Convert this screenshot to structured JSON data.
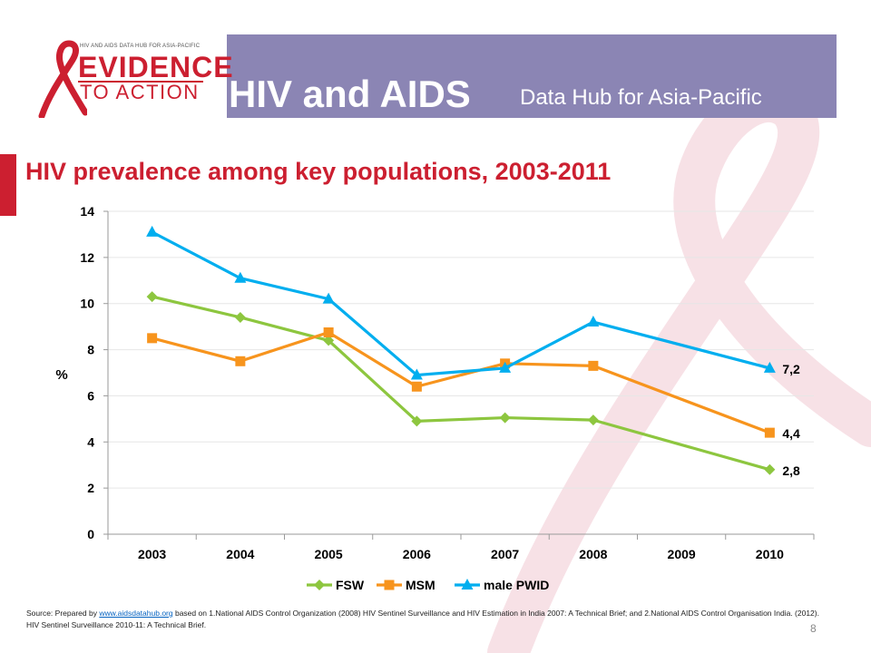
{
  "header": {
    "logo_small_text": "HIV AND AIDS DATA HUB FOR ASIA-PACIFIC",
    "logo_evidence": "EVIDENCE",
    "logo_to_action": "TO ACTION",
    "title": "HIV and AIDS",
    "subtitle": "Data Hub for Asia-Pacific"
  },
  "slide": {
    "title": "HIV prevalence among key populations, 2003-2011",
    "page_number": "8"
  },
  "source": {
    "prefix": "Source: Prepared by ",
    "link": "www.aidsdatahub.org",
    "rest": " based on 1.National AIDS Control Organization (2008) HIV Sentinel Surveillance and HIV Estimation in India 2007: A Technical Brief; and 2.National AIDS Control Organisation India. (2012). HIV Sentinel Surveillance 2010-11: A Technical Brief."
  },
  "colors": {
    "header_band": "#8b85b4",
    "accent_red": "#cc1f30",
    "fsw": "#8dc63f",
    "msm": "#f7941d",
    "pwid": "#00aeef"
  },
  "chart_data": {
    "type": "line",
    "title": "",
    "xlabel": "",
    "ylabel": "%",
    "categories": [
      "2003",
      "2004",
      "2005",
      "2006",
      "2007",
      "2008",
      "2009",
      "2010"
    ],
    "ylim": [
      0,
      14
    ],
    "yticks": [
      0,
      2,
      4,
      6,
      8,
      10,
      12,
      14
    ],
    "grid": true,
    "legend_position": "bottom",
    "series": [
      {
        "name": "FSW",
        "marker": "diamond",
        "color": "#8dc63f",
        "points": [
          [
            0,
            10.3
          ],
          [
            1,
            9.4
          ],
          [
            2,
            8.4
          ],
          [
            3,
            4.9
          ],
          [
            4,
            5.05
          ],
          [
            5,
            4.95
          ],
          [
            7,
            2.8
          ]
        ],
        "end_label": "2,8"
      },
      {
        "name": "MSM",
        "marker": "square",
        "color": "#f7941d",
        "points": [
          [
            0,
            8.5
          ],
          [
            1,
            7.5
          ],
          [
            2,
            8.75
          ],
          [
            3,
            6.4
          ],
          [
            4,
            7.4
          ],
          [
            5,
            7.3
          ],
          [
            7,
            4.4
          ]
        ],
        "end_label": "4,4"
      },
      {
        "name": "male PWID",
        "marker": "triangle",
        "color": "#00aeef",
        "points": [
          [
            0,
            13.1
          ],
          [
            1,
            11.1
          ],
          [
            2,
            10.2
          ],
          [
            3,
            6.9
          ],
          [
            4,
            7.2
          ],
          [
            5,
            9.2
          ],
          [
            7,
            7.2
          ]
        ],
        "end_label": "7,2"
      }
    ]
  }
}
